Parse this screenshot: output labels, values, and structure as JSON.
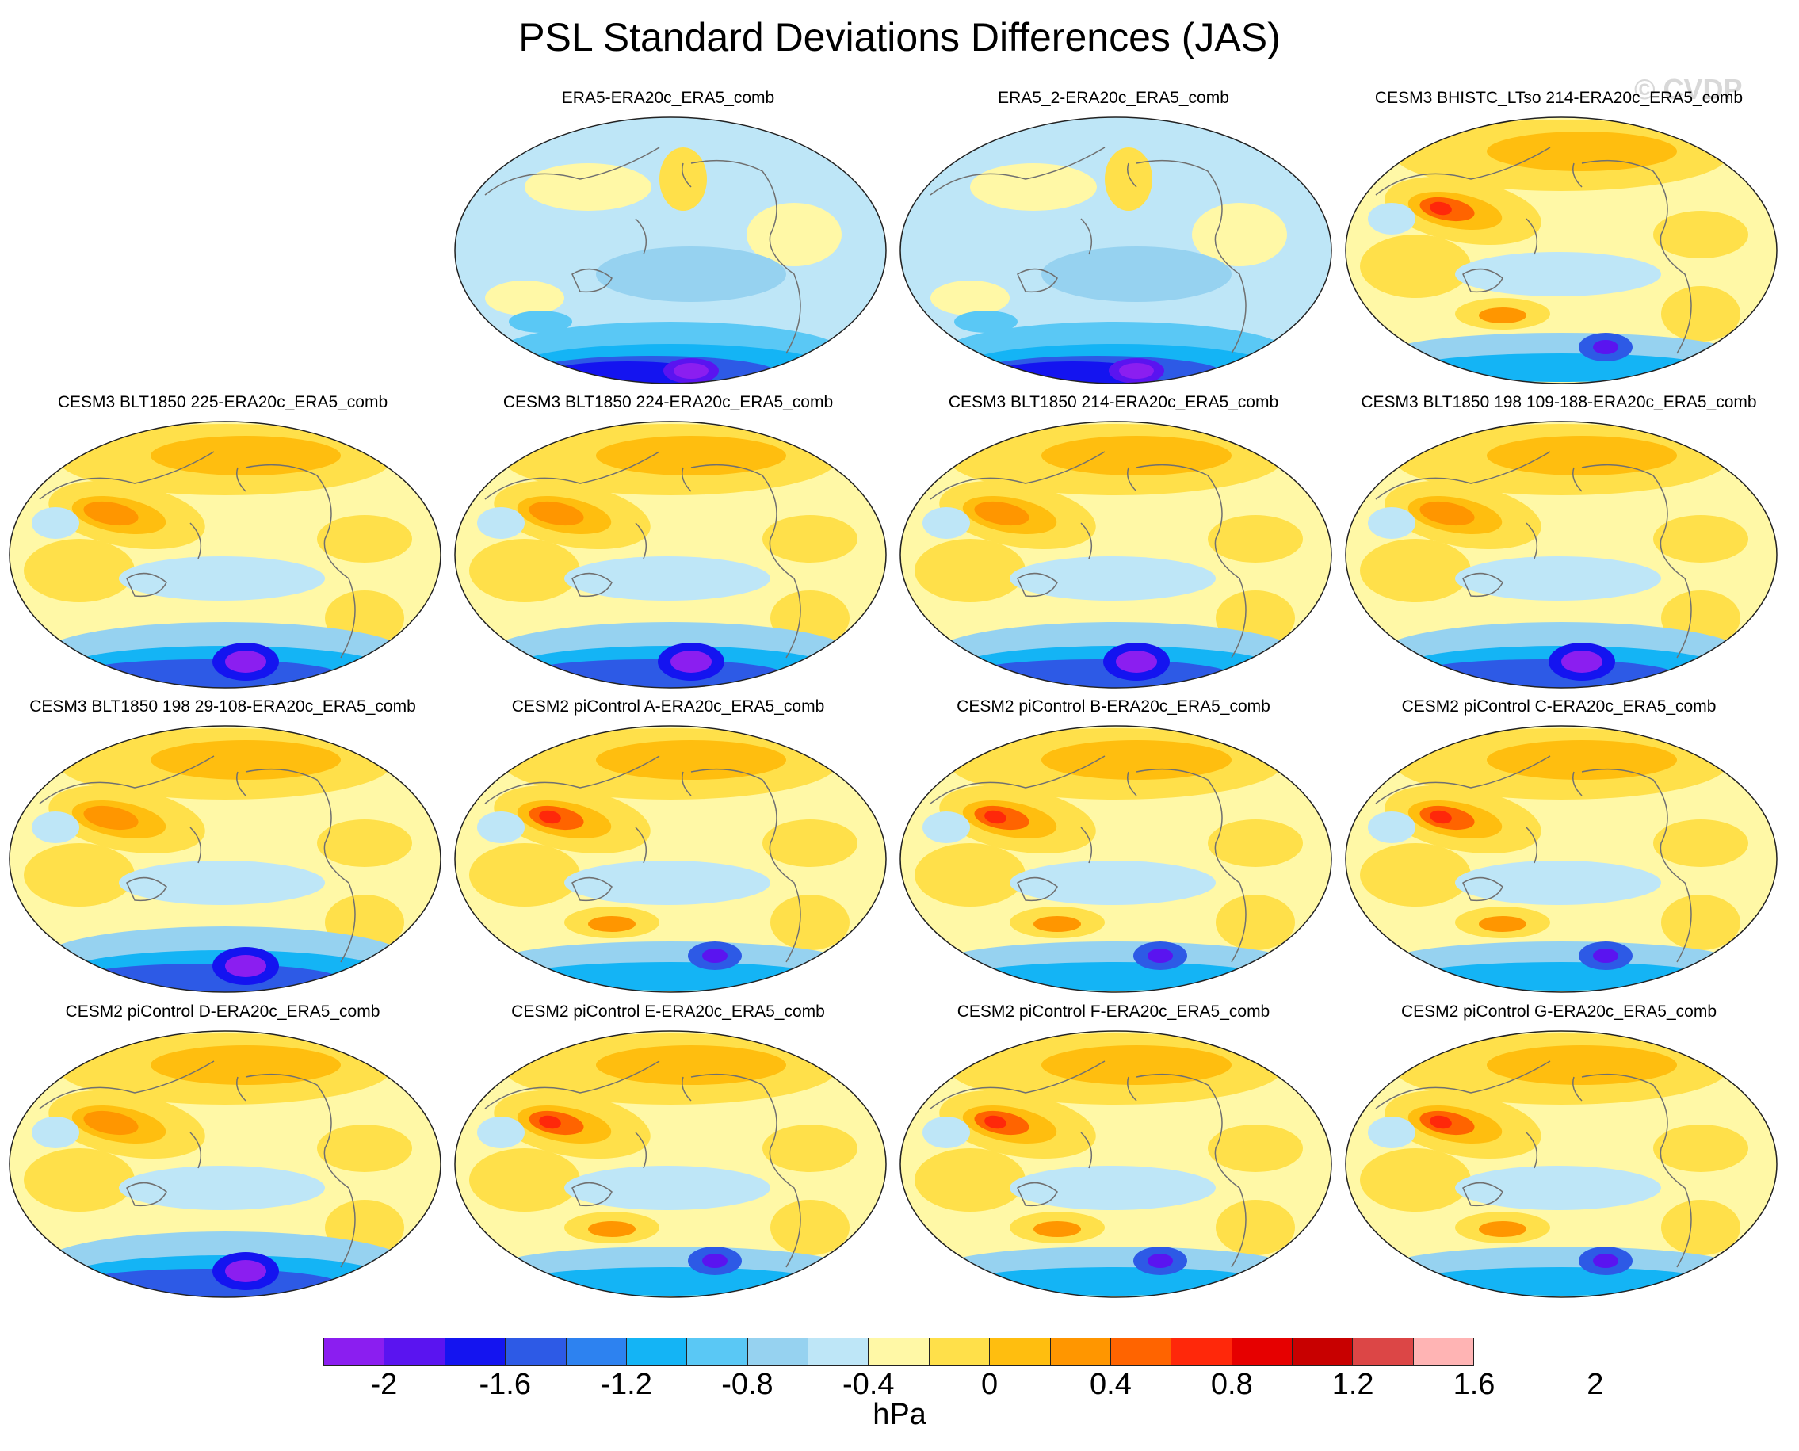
{
  "title": "PSL Standard Deviations Differences (JAS)",
  "watermark": "© CVDP",
  "panels": [
    {
      "title": "ERA5-ERA20c_ERA5_comb",
      "style": "obs"
    },
    {
      "title": "ERA5_2-ERA20c_ERA5_comb",
      "style": "obs"
    },
    {
      "title": "CESM3 BHISTC_LTso 214-ERA20c_ERA5_comb",
      "style": "warm"
    },
    {
      "title": "CESM3 BLT1850 225-ERA20c_ERA5_comb",
      "style": "model"
    },
    {
      "title": "CESM3 BLT1850 224-ERA20c_ERA5_comb",
      "style": "model"
    },
    {
      "title": "CESM3 BLT1850 214-ERA20c_ERA5_comb",
      "style": "model"
    },
    {
      "title": "CESM3 BLT1850 198 109-188-ERA20c_ERA5_comb",
      "style": "model"
    },
    {
      "title": "CESM3 BLT1850 198 29-108-ERA20c_ERA5_comb",
      "style": "model"
    },
    {
      "title": "CESM2 piControl A-ERA20c_ERA5_comb",
      "style": "warm"
    },
    {
      "title": "CESM2 piControl B-ERA20c_ERA5_comb",
      "style": "warm"
    },
    {
      "title": "CESM2 piControl C-ERA20c_ERA5_comb",
      "style": "warm"
    },
    {
      "title": "CESM2 piControl D-ERA20c_ERA5_comb",
      "style": "model"
    },
    {
      "title": "CESM2 piControl E-ERA20c_ERA5_comb",
      "style": "warm"
    },
    {
      "title": "CESM2 piControl F-ERA20c_ERA5_comb",
      "style": "warm"
    },
    {
      "title": "CESM2 piControl G-ERA20c_ERA5_comb",
      "style": "warm"
    }
  ],
  "colorbar": {
    "colors": [
      "#8b1ef0",
      "#5a14f0",
      "#1414f0",
      "#2d5ae6",
      "#2d82f0",
      "#14b4f5",
      "#5ac8f5",
      "#96d2f0",
      "#bee6f7",
      "#fff8a6",
      "#ffe04a",
      "#ffbe0f",
      "#ff9600",
      "#ff6400",
      "#ff280a",
      "#e60000",
      "#c80000",
      "#dc4646",
      "#ffb4b4"
    ],
    "ticks": [
      "-2",
      "-1.6",
      "-1.2",
      "-0.8",
      "-0.4",
      "0",
      "0.4",
      "0.8",
      "1.2",
      "1.6",
      "2"
    ],
    "units": "hPa"
  }
}
